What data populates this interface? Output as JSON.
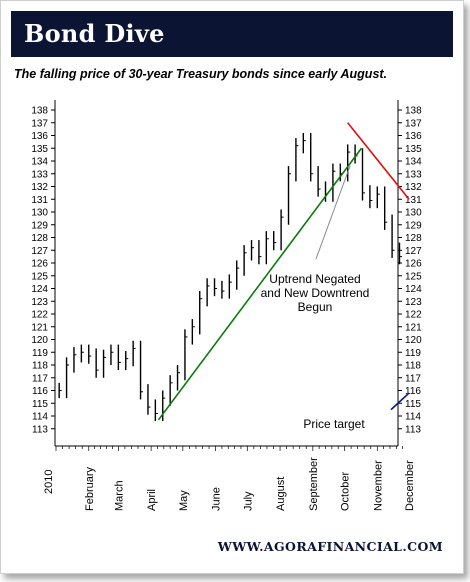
{
  "banner": {
    "title": "Bond Dive"
  },
  "subtitle": "The falling price of 30-year Treasury bonds since early August.",
  "footer": {
    "url": "WWW.AGORAFINANCIAL.COM"
  },
  "colors": {
    "banner_bg": "#0b1433",
    "uptrend": "#0a7a0a",
    "downtrend": "#dd1111",
    "target": "#0b1a7a",
    "ohlc": "#000000"
  },
  "chart_data": {
    "type": "line",
    "title": "",
    "xlabel": "",
    "ylabel": "",
    "x_axis_year": "2010",
    "x_months": [
      "February",
      "March",
      "April",
      "May",
      "June",
      "July",
      "August",
      "September",
      "October",
      "November",
      "December"
    ],
    "ylim": [
      113,
      138
    ],
    "y_ticks": [
      "113",
      "114",
      "115",
      "116",
      "117",
      "118",
      "119",
      "120",
      "121",
      "122",
      "123",
      "124",
      "125",
      "126",
      "127",
      "128",
      "129",
      "130",
      "131",
      "132",
      "133",
      "134",
      "135",
      "136",
      "137",
      "138"
    ],
    "series": [
      {
        "x": [
          "2010-01-04",
          "2010-01-11",
          "2010-01-18",
          "2010-01-25",
          "2010-02-01",
          "2010-02-08",
          "2010-02-15",
          "2010-02-22",
          "2010-03-01",
          "2010-03-08",
          "2010-03-15",
          "2010-03-22",
          "2010-03-29",
          "2010-04-05",
          "2010-04-12",
          "2010-04-19",
          "2010-04-26",
          "2010-05-03",
          "2010-05-10",
          "2010-05-17",
          "2010-05-24",
          "2010-05-31",
          "2010-06-07",
          "2010-06-14",
          "2010-06-21",
          "2010-06-28",
          "2010-07-05",
          "2010-07-12",
          "2010-07-19",
          "2010-07-26",
          "2010-08-02",
          "2010-08-09",
          "2010-08-16",
          "2010-08-23",
          "2010-08-30",
          "2010-09-06",
          "2010-09-13",
          "2010-09-20",
          "2010-09-27",
          "2010-10-04",
          "2010-10-11",
          "2010-10-18",
          "2010-10-25",
          "2010-11-01",
          "2010-11-08",
          "2010-11-15",
          "2010-11-22"
        ],
        "y": [
          116.0,
          118.0,
          118.8,
          119.0,
          118.7,
          117.6,
          118.6,
          119.0,
          118.2,
          118.5,
          119.3,
          115.9,
          114.7,
          114.2,
          115.4,
          116.6,
          117.4,
          120.2,
          121.0,
          123.2,
          124.2,
          124.0,
          123.8,
          124.5,
          125.6,
          126.8,
          127.2,
          126.5,
          127.9,
          127.6,
          129.6,
          133.0,
          135.2,
          135.6,
          133.0,
          131.8,
          131.4,
          133.2,
          133.0,
          134.7,
          134.4,
          131.5,
          130.9,
          131.4,
          129.2,
          127.0,
          126.5
        ]
      }
    ],
    "trendlines": [
      {
        "label": "uptrend",
        "from": [
          "2010-04-08",
          113.7
        ],
        "to": [
          "2010-10-17",
          135.0
        ]
      },
      {
        "label": "downtrend",
        "from": [
          "2010-10-04",
          137.0
        ],
        "to": [
          "2010-12-01",
          131.0
        ]
      },
      {
        "label": "price target",
        "from": [
          "2010-11-14",
          114.5
        ],
        "to": [
          "2010-12-01",
          115.8
        ]
      }
    ],
    "annotations": [
      {
        "lines": [
          "Uptrend Negated",
          "and New Downtrend",
          "Begun"
        ]
      },
      {
        "lines": [
          "Price target"
        ]
      }
    ],
    "grid": false
  }
}
